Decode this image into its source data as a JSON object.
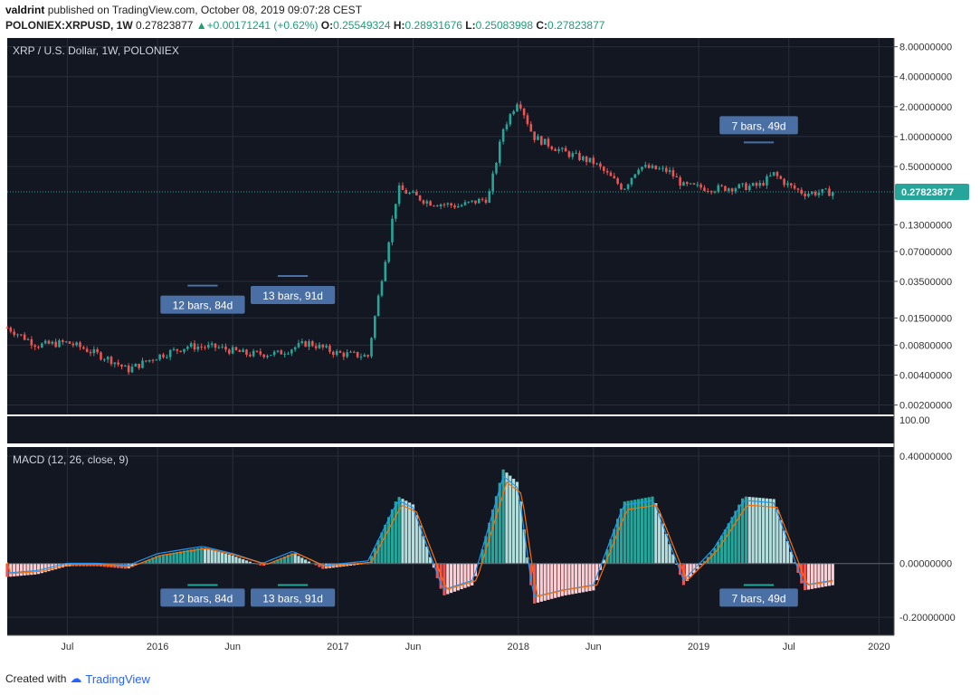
{
  "header": {
    "author": "valdrint",
    "published_text": "published on TradingView.com, October 08, 2019 09:07:28 CEST",
    "symbol": "POLONIEX:XRPUSD, 1W",
    "last": "0.27823877",
    "change": "+0.00171241 (+0.62%)",
    "o_label": "O:",
    "o_val": "0.25549324",
    "h_label": "H:",
    "h_val": "0.28931676",
    "l_label": "L:",
    "l_val": "0.25083998",
    "c_label": "C:",
    "c_val": "0.27823877"
  },
  "footer": {
    "created_with": "Created with",
    "brand": "TradingView"
  },
  "colors": {
    "bg": "#131722",
    "grid": "#2a2e39",
    "up": "#26a69a",
    "down": "#ef5350",
    "macd_line": "#2196f3",
    "signal_line": "#ff6d00",
    "badge": "#4a6fa5",
    "price_badge": "#26a69a"
  },
  "chart_data": [
    {
      "type": "candlestick",
      "title": "XRP / U.S. Dollar, 1W, POLONIEX",
      "scale": "log",
      "y_tick_labels": [
        "8.00000000",
        "4.00000000",
        "2.00000000",
        "1.00000000",
        "0.50000000",
        "0.13000000",
        "0.07000000",
        "0.03500000",
        "0.01500000",
        "0.00800000",
        "0.00400000",
        "0.00200000"
      ],
      "y_tick_values": [
        8,
        4,
        2,
        1,
        0.5,
        0.13,
        0.07,
        0.035,
        0.015,
        0.008,
        0.004,
        0.002
      ],
      "ylim": [
        0.0019,
        9
      ],
      "x_tick_labels": [
        "Jul",
        "2016",
        "Jun",
        "2017",
        "Jun",
        "2018",
        "Jun",
        "2019",
        "Jul",
        "2020"
      ],
      "x_tick_dates": [
        "2015-07",
        "2016-01",
        "2016-06",
        "2017-01",
        "2017-06",
        "2018-01",
        "2018-06",
        "2019-01",
        "2019-07",
        "2020-01"
      ],
      "xlim": [
        "2015-03",
        "2020-02"
      ],
      "last_price_label": "0.27823877",
      "last_price": 0.27823877,
      "upper_pane_label": "100.00",
      "price_path": [
        [
          "2015-03",
          0.012
        ],
        [
          "2015-05",
          0.008
        ],
        [
          "2015-07",
          0.0085
        ],
        [
          "2015-08",
          0.0075
        ],
        [
          "2015-10",
          0.0056
        ],
        [
          "2015-11",
          0.0045
        ],
        [
          "2016-01",
          0.0062
        ],
        [
          "2016-03",
          0.0078
        ],
        [
          "2016-05",
          0.0076
        ],
        [
          "2016-07",
          0.0065
        ],
        [
          "2016-09",
          0.0066
        ],
        [
          "2016-11",
          0.0085
        ],
        [
          "2017-01",
          0.0066
        ],
        [
          "2017-03",
          0.0062
        ],
        [
          "2017-04",
          0.045
        ],
        [
          "2017-05",
          0.3
        ],
        [
          "2017-07",
          0.22
        ],
        [
          "2017-09",
          0.2
        ],
        [
          "2017-11",
          0.24
        ],
        [
          "2017-12",
          1.2
        ],
        [
          "2018-01",
          2.4
        ],
        [
          "2018-02",
          1.0
        ],
        [
          "2018-04",
          0.7
        ],
        [
          "2018-06",
          0.55
        ],
        [
          "2018-08",
          0.3
        ],
        [
          "2018-09",
          0.5
        ],
        [
          "2018-11",
          0.45
        ],
        [
          "2018-12",
          0.32
        ],
        [
          "2019-02",
          0.3
        ],
        [
          "2019-05",
          0.32
        ],
        [
          "2019-06",
          0.42
        ],
        [
          "2019-07",
          0.32
        ],
        [
          "2019-08",
          0.27
        ],
        [
          "2019-10",
          0.278
        ]
      ],
      "annotations": [
        {
          "text": "12 bars, 84d",
          "from": "2016-03",
          "to": "2016-05"
        },
        {
          "text": "13 bars, 91d",
          "from": "2016-09",
          "to": "2016-11"
        },
        {
          "text": "7 bars, 49d",
          "from": "2019-04",
          "to": "2019-06"
        }
      ]
    },
    {
      "type": "macd",
      "title": "MACD (12, 26, close, 9)",
      "y_tick_labels": [
        "0.40000000",
        "0.00000000",
        "-0.20000000"
      ],
      "y_tick_values": [
        0.4,
        0,
        -0.2
      ],
      "ylim": [
        -0.24,
        0.42
      ],
      "histogram": [
        [
          "2015-03",
          -0.05
        ],
        [
          "2015-05",
          -0.04
        ],
        [
          "2015-07",
          -0.01
        ],
        [
          "2015-09",
          -0.01
        ],
        [
          "2015-11",
          -0.02
        ],
        [
          "2016-01",
          0.03
        ],
        [
          "2016-04",
          0.06
        ],
        [
          "2016-06",
          0.03
        ],
        [
          "2016-08",
          -0.01
        ],
        [
          "2016-10",
          0.04
        ],
        [
          "2016-12",
          -0.02
        ],
        [
          "2017-03",
          0.0
        ],
        [
          "2017-05",
          0.25
        ],
        [
          "2017-06",
          0.22
        ],
        [
          "2017-08",
          -0.12
        ],
        [
          "2017-10",
          -0.08
        ],
        [
          "2017-12",
          0.35
        ],
        [
          "2018-01",
          0.3
        ],
        [
          "2018-02",
          -0.15
        ],
        [
          "2018-04",
          -0.12
        ],
        [
          "2018-06",
          -0.1
        ],
        [
          "2018-08",
          0.23
        ],
        [
          "2018-10",
          0.25
        ],
        [
          "2018-12",
          -0.08
        ],
        [
          "2019-02",
          0.05
        ],
        [
          "2019-04",
          0.25
        ],
        [
          "2019-06",
          0.24
        ],
        [
          "2019-08",
          -0.1
        ],
        [
          "2019-10",
          -0.08
        ]
      ],
      "annotations": [
        {
          "text": "12 bars, 84d",
          "from": "2016-03",
          "to": "2016-05"
        },
        {
          "text": "13 bars, 91d",
          "from": "2016-09",
          "to": "2016-11"
        },
        {
          "text": "7 bars, 49d",
          "from": "2019-04",
          "to": "2019-06"
        }
      ]
    }
  ]
}
